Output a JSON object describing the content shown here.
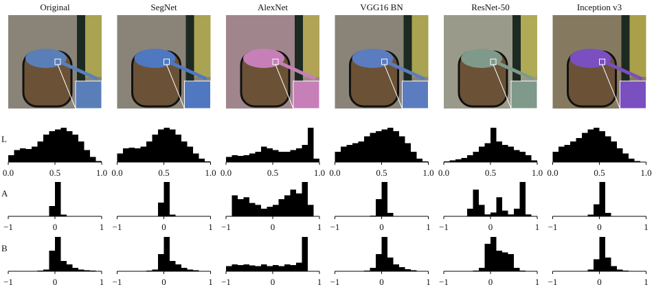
{
  "columns": [
    "Original",
    "SegNet",
    "AlexNet",
    "VGG16 BN",
    "ResNet-50",
    "Inception v3"
  ],
  "rows": [
    "L",
    "A",
    "B"
  ],
  "chart_data": [
    {
      "type": "histogram",
      "bins": [
        0,
        0.0625,
        0.125,
        0.1875,
        0.25,
        0.3125,
        0.375,
        0.4375,
        0.5,
        0.5625,
        0.625,
        0.6875,
        0.75,
        0.8125,
        0.875,
        0.9375,
        1
      ],
      "values": [
        0.2,
        0.35,
        0.4,
        0.38,
        0.45,
        0.6,
        0.8,
        0.9,
        0.95,
        1.0,
        0.9,
        0.8,
        0.6,
        0.35,
        0.15,
        0.03
      ],
      "xlim": [
        0,
        1
      ],
      "xticks": [
        {
          "value": 0,
          "label": "0.0"
        },
        {
          "value": 0.5,
          "label": "0.5"
        },
        {
          "value": 1,
          "label": "1.0"
        }
      ],
      "color": "#000000"
    },
    {
      "type": "histogram",
      "bins": [
        0,
        0.0625,
        0.125,
        0.1875,
        0.25,
        0.3125,
        0.375,
        0.4375,
        0.5,
        0.5625,
        0.625,
        0.6875,
        0.75,
        0.8125,
        0.875,
        0.9375,
        1
      ],
      "values": [
        0.25,
        0.4,
        0.42,
        0.4,
        0.45,
        0.6,
        0.8,
        0.95,
        1.0,
        0.95,
        0.8,
        0.6,
        0.45,
        0.25,
        0.1,
        0.02
      ],
      "xlim": [
        0,
        1
      ],
      "xticks": [
        {
          "value": 0,
          "label": "0.0"
        },
        {
          "value": 0.5,
          "label": "0.5"
        },
        {
          "value": 1,
          "label": "1.0"
        }
      ],
      "color": "#000000"
    },
    {
      "type": "histogram",
      "bins": [
        0,
        0.0625,
        0.125,
        0.1875,
        0.25,
        0.3125,
        0.375,
        0.4375,
        0.5,
        0.5625,
        0.625,
        0.6875,
        0.75,
        0.8125,
        0.875,
        0.9375,
        1
      ],
      "values": [
        0.15,
        0.2,
        0.18,
        0.2,
        0.25,
        0.3,
        0.45,
        0.4,
        0.35,
        0.3,
        0.3,
        0.35,
        0.4,
        0.5,
        1.0,
        0.1
      ],
      "xlim": [
        0,
        1
      ],
      "xticks": [
        {
          "value": 0,
          "label": "0.0"
        },
        {
          "value": 0.5,
          "label": "0.5"
        },
        {
          "value": 1,
          "label": "1.0"
        }
      ],
      "color": "#000000"
    },
    {
      "type": "histogram",
      "bins": [
        0,
        0.0625,
        0.125,
        0.1875,
        0.25,
        0.3125,
        0.375,
        0.4375,
        0.5,
        0.5625,
        0.625,
        0.6875,
        0.75,
        0.8125,
        0.875,
        0.9375,
        1
      ],
      "values": [
        0.3,
        0.45,
        0.5,
        0.55,
        0.6,
        0.75,
        0.85,
        0.9,
        0.95,
        1.0,
        0.9,
        0.75,
        0.55,
        0.3,
        0.1,
        0.02
      ],
      "xlim": [
        0,
        1
      ],
      "xticks": [
        {
          "value": 0,
          "label": "0.0"
        },
        {
          "value": 0.5,
          "label": "0.5"
        },
        {
          "value": 1,
          "label": "1.0"
        }
      ],
      "color": "#000000"
    },
    {
      "type": "histogram",
      "bins": [
        0,
        0.0625,
        0.125,
        0.1875,
        0.25,
        0.3125,
        0.375,
        0.4375,
        0.5,
        0.5625,
        0.625,
        0.6875,
        0.75,
        0.8125,
        0.875,
        0.9375,
        1
      ],
      "values": [
        0.02,
        0.05,
        0.08,
        0.12,
        0.2,
        0.3,
        0.45,
        0.55,
        1.0,
        0.6,
        0.5,
        0.45,
        0.35,
        0.3,
        0.2,
        0.05
      ],
      "xlim": [
        0,
        1
      ],
      "xticks": [
        {
          "value": 0,
          "label": "0.0"
        },
        {
          "value": 0.5,
          "label": "0.5"
        },
        {
          "value": 1,
          "label": "1.0"
        }
      ],
      "color": "#000000"
    },
    {
      "type": "histogram",
      "bins": [
        0,
        0.0625,
        0.125,
        0.1875,
        0.25,
        0.3125,
        0.375,
        0.4375,
        0.5,
        0.5625,
        0.625,
        0.6875,
        0.75,
        0.8125,
        0.875,
        0.9375,
        1
      ],
      "values": [
        0.3,
        0.45,
        0.5,
        0.6,
        0.7,
        0.85,
        0.95,
        1.0,
        0.9,
        0.75,
        0.6,
        0.4,
        0.25,
        0.1,
        0.03,
        0.01
      ],
      "xlim": [
        0,
        1
      ],
      "xticks": [
        {
          "value": 0,
          "label": "0.0"
        },
        {
          "value": 0.5,
          "label": "0.5"
        },
        {
          "value": 1,
          "label": "1.0"
        }
      ],
      "color": "#000000"
    },
    {
      "type": "histogram",
      "bins": [
        -1,
        -0.875,
        -0.75,
        -0.625,
        -0.5,
        -0.375,
        -0.25,
        -0.125,
        0,
        0.125,
        0.25,
        0.375,
        0.5,
        0.625,
        0.75,
        0.875,
        1
      ],
      "values": [
        0,
        0,
        0,
        0,
        0,
        0,
        0.01,
        0.3,
        1.0,
        0.05,
        0,
        0,
        0,
        0,
        0,
        0
      ],
      "xlim": [
        -1,
        1
      ],
      "xticks": [
        {
          "value": -1,
          "label": "−1"
        },
        0,
        1
      ],
      "color": "#000000"
    },
    {
      "type": "histogram",
      "bins": [
        -1,
        -0.875,
        -0.75,
        -0.625,
        -0.5,
        -0.375,
        -0.25,
        -0.125,
        0,
        0.125,
        0.25,
        0.375,
        0.5,
        0.625,
        0.75,
        0.875,
        1
      ],
      "values": [
        0,
        0,
        0,
        0,
        0,
        0,
        0.01,
        0.4,
        1.0,
        0.05,
        0,
        0,
        0,
        0,
        0,
        0
      ],
      "xlim": [
        -1,
        1
      ],
      "xticks": [
        {
          "value": -1,
          "label": "−1"
        },
        0,
        1
      ],
      "color": "#000000"
    },
    {
      "type": "histogram",
      "bins": [
        -1,
        -0.875,
        -0.75,
        -0.625,
        -0.5,
        -0.375,
        -0.25,
        -0.125,
        0,
        0.125,
        0.25,
        0.375,
        0.5,
        0.625,
        0.75,
        0.875,
        1
      ],
      "values": [
        0,
        0.55,
        0.45,
        0.5,
        0.35,
        0.3,
        0.2,
        0.25,
        0.3,
        0.45,
        0.55,
        0.7,
        0.6,
        0.9,
        0.3,
        0
      ],
      "xlim": [
        -1,
        1
      ],
      "xticks": [
        {
          "value": -1,
          "label": "−1"
        },
        0,
        1
      ],
      "color": "#000000"
    },
    {
      "type": "histogram",
      "bins": [
        -1,
        -0.875,
        -0.75,
        -0.625,
        -0.5,
        -0.375,
        -0.25,
        -0.125,
        0,
        0.125,
        0.25,
        0.375,
        0.5,
        0.625,
        0.75,
        0.875,
        1
      ],
      "values": [
        0,
        0,
        0,
        0,
        0,
        0,
        0.02,
        0.5,
        1.0,
        0.1,
        0,
        0,
        0,
        0,
        0,
        0
      ],
      "xlim": [
        -1,
        1
      ],
      "xticks": [
        {
          "value": -1,
          "label": "−1"
        },
        0,
        1
      ],
      "color": "#000000"
    },
    {
      "type": "histogram",
      "bins": [
        -1,
        -0.875,
        -0.75,
        -0.625,
        -0.5,
        -0.375,
        -0.25,
        -0.125,
        0,
        0.125,
        0.25,
        0.375,
        0.5,
        0.625,
        0.75,
        0.875,
        1
      ],
      "values": [
        0,
        0,
        0,
        0,
        0.2,
        0.7,
        0.3,
        0.05,
        0.1,
        0.5,
        0.15,
        0.05,
        0.2,
        0.9,
        0.05,
        0
      ],
      "xlim": [
        -1,
        1
      ],
      "xticks": [
        {
          "value": -1,
          "label": "−1"
        },
        0,
        1
      ],
      "color": "#000000"
    },
    {
      "type": "histogram",
      "bins": [
        -1,
        -0.875,
        -0.75,
        -0.625,
        -0.5,
        -0.375,
        -0.25,
        -0.125,
        0,
        0.125,
        0.25,
        0.375,
        0.5,
        0.625,
        0.75,
        0.875,
        1
      ],
      "values": [
        0,
        0,
        0,
        0,
        0,
        0,
        0.05,
        0.35,
        1.0,
        0.1,
        0,
        0,
        0,
        0,
        0,
        0
      ],
      "xlim": [
        -1,
        1
      ],
      "xticks": [
        {
          "value": -1,
          "label": "−1"
        },
        0,
        1
      ],
      "color": "#000000"
    },
    {
      "type": "histogram",
      "bins": [
        -1,
        -0.875,
        -0.75,
        -0.625,
        -0.5,
        -0.375,
        -0.25,
        -0.125,
        0,
        0.125,
        0.25,
        0.375,
        0.5,
        0.625,
        0.75,
        0.875,
        1
      ],
      "values": [
        0,
        0,
        0,
        0,
        0,
        0.02,
        0.05,
        0.6,
        1.0,
        0.3,
        0.2,
        0.1,
        0.05,
        0.03,
        0.02,
        0
      ],
      "xlim": [
        -1,
        1
      ],
      "xticks": [
        {
          "value": -1,
          "label": "−1"
        },
        0,
        1
      ],
      "color": "#000000"
    },
    {
      "type": "histogram",
      "bins": [
        -1,
        -0.875,
        -0.75,
        -0.625,
        -0.5,
        -0.375,
        -0.25,
        -0.125,
        0,
        0.125,
        0.25,
        0.375,
        0.5,
        0.625,
        0.75,
        0.875,
        1
      ],
      "values": [
        0,
        0,
        0,
        0,
        0,
        0.02,
        0.05,
        0.5,
        1.0,
        0.3,
        0.2,
        0.1,
        0.05,
        0.03,
        0.01,
        0
      ],
      "xlim": [
        -1,
        1
      ],
      "xticks": [
        {
          "value": -1,
          "label": "−1"
        },
        0,
        1
      ],
      "color": "#000000"
    },
    {
      "type": "histogram",
      "bins": [
        -1,
        -0.875,
        -0.75,
        -0.625,
        -0.5,
        -0.375,
        -0.25,
        -0.125,
        0,
        0.125,
        0.25,
        0.375,
        0.5,
        0.625,
        0.75,
        0.875,
        1
      ],
      "values": [
        0.15,
        0.2,
        0.18,
        0.2,
        0.17,
        0.15,
        0.2,
        0.15,
        0.18,
        0.15,
        0.2,
        0.18,
        0.25,
        1.0,
        0,
        0
      ],
      "xlim": [
        -1,
        1
      ],
      "xticks": [
        {
          "value": -1,
          "label": "−1"
        },
        0,
        1
      ],
      "color": "#000000"
    },
    {
      "type": "histogram",
      "bins": [
        -1,
        -0.875,
        -0.75,
        -0.625,
        -0.5,
        -0.375,
        -0.25,
        -0.125,
        0,
        0.125,
        0.25,
        0.375,
        0.5,
        0.625,
        0.75,
        0.875,
        1
      ],
      "values": [
        0,
        0,
        0,
        0,
        0,
        0.02,
        0.1,
        0.5,
        1.0,
        0.4,
        0.2,
        0.12,
        0.06,
        0.03,
        0.01,
        0
      ],
      "xlim": [
        -1,
        1
      ],
      "xticks": [
        {
          "value": -1,
          "label": "−1"
        },
        0,
        1
      ],
      "color": "#000000"
    },
    {
      "type": "histogram",
      "bins": [
        -1,
        -0.875,
        -0.75,
        -0.625,
        -0.5,
        -0.375,
        -0.25,
        -0.125,
        0,
        0.125,
        0.25,
        0.375,
        0.5,
        0.625,
        0.75,
        0.875,
        1
      ],
      "values": [
        0,
        0,
        0,
        0,
        0,
        0.02,
        0.1,
        0.8,
        1.0,
        0.6,
        0.55,
        0.5,
        0.1,
        0.02,
        0,
        0
      ],
      "xlim": [
        -1,
        1
      ],
      "xticks": [
        {
          "value": -1,
          "label": "−1"
        },
        0,
        1
      ],
      "color": "#000000"
    },
    {
      "type": "histogram",
      "bins": [
        -1,
        -0.875,
        -0.75,
        -0.625,
        -0.5,
        -0.375,
        -0.25,
        -0.125,
        0,
        0.125,
        0.25,
        0.375,
        0.5,
        0.625,
        0.75,
        0.875,
        1
      ],
      "values": [
        0,
        0,
        0,
        0,
        0,
        0,
        0.05,
        0.35,
        1.0,
        0.4,
        0.15,
        0.05,
        0.02,
        0,
        0,
        0
      ],
      "xlim": [
        -1,
        1
      ],
      "xticks": [
        {
          "value": -1,
          "label": "−1"
        },
        0,
        1
      ],
      "color": "#000000"
    }
  ]
}
